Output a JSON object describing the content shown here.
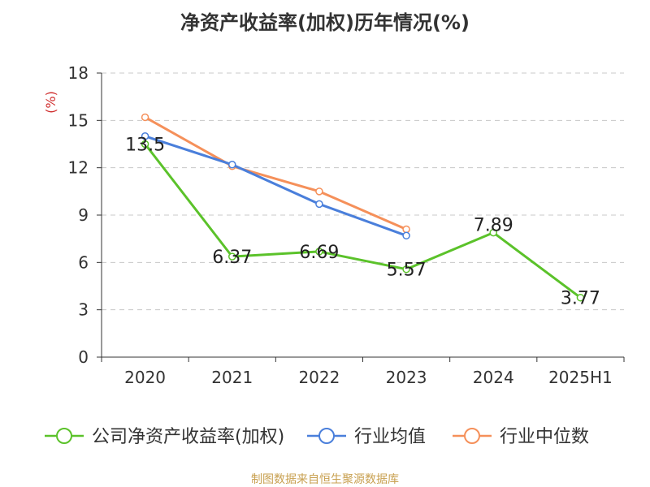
{
  "chart_data": {
    "type": "line",
    "title": "净资产收益率(加权)历年情况(%)",
    "ylabel": "(%)",
    "xlabel": "",
    "categories": [
      "2020",
      "2021",
      "2022",
      "2023",
      "2024",
      "2025H1"
    ],
    "ylim": [
      0,
      18
    ],
    "yticks": [
      0,
      3,
      6,
      9,
      12,
      15,
      18
    ],
    "grid": true,
    "legend_position": "bottom",
    "series": [
      {
        "name": "公司净资产收益率(加权)",
        "color": "#5bc22a",
        "values": [
          13.5,
          6.37,
          6.69,
          5.57,
          7.89,
          3.77
        ],
        "labels": [
          "13.5",
          "6.37",
          "6.69",
          "5.57",
          "7.89",
          "3.77"
        ]
      },
      {
        "name": "行业均值",
        "color": "#4a7fdb",
        "values": [
          14.0,
          12.2,
          9.7,
          7.7,
          null,
          null
        ]
      },
      {
        "name": "行业中位数",
        "color": "#f5905a",
        "values": [
          15.2,
          12.1,
          10.5,
          8.1,
          null,
          null
        ]
      }
    ]
  },
  "source": "制图数据来自恒生聚源数据库"
}
